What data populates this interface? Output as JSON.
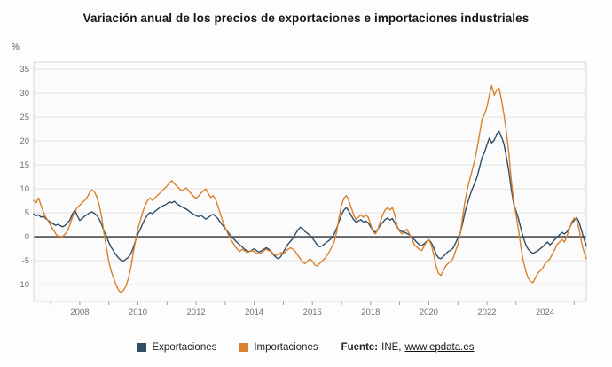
{
  "title": "Variación anual de los precios de exportaciones e importaciones industriales",
  "y_unit_label": "%",
  "legend": {
    "exportaciones": "Exportaciones",
    "importaciones": "Importaciones"
  },
  "source": {
    "prefix": "Fuente:",
    "org": "INE,",
    "link": "www.epdata.es"
  },
  "colors": {
    "exportaciones": "#2e4d66",
    "importaciones": "#d9812c",
    "zero_line": "#4d4d4d",
    "grid": "#e4e4e4",
    "border": "#d6d6d6",
    "plot_bg": "#fbfbfb",
    "axis_text": "#707070",
    "tick": "#999999"
  },
  "chart_data": {
    "type": "line",
    "title": "Variación anual de los precios de exportaciones e importaciones industriales",
    "xlabel": "",
    "ylabel": "%",
    "x_start": 2006.4167,
    "x_step": 0.0833333,
    "xticks": [
      2008,
      2010,
      2012,
      2014,
      2016,
      2018,
      2020,
      2022,
      2024
    ],
    "yticks": [
      -10,
      -5,
      0,
      5,
      10,
      15,
      20,
      25,
      30,
      35
    ],
    "ylim_draw": [
      -13.5,
      36.5
    ],
    "legend_position": "bottom",
    "grid": true,
    "series": [
      {
        "name": "Exportaciones",
        "color": "#2e4d66",
        "values": [
          4.8,
          4.4,
          4.6,
          4.1,
          4.3,
          3.8,
          3.4,
          3.0,
          2.7,
          2.4,
          2.6,
          2.3,
          2.1,
          2.4,
          2.9,
          3.6,
          4.8,
          5.6,
          4.4,
          3.4,
          3.8,
          4.3,
          4.6,
          5.0,
          5.2,
          4.9,
          4.5,
          3.7,
          2.6,
          1.2,
          0.2,
          -1.2,
          -2.2,
          -3.0,
          -3.8,
          -4.4,
          -4.9,
          -5.1,
          -4.7,
          -4.3,
          -3.6,
          -2.4,
          -0.8,
          0.6,
          1.6,
          2.8,
          3.8,
          4.6,
          5.1,
          4.8,
          5.3,
          5.7,
          6.1,
          6.4,
          6.6,
          6.9,
          7.3,
          7.1,
          7.4,
          6.9,
          6.6,
          6.3,
          6.0,
          5.8,
          5.4,
          5.0,
          4.7,
          4.4,
          4.2,
          4.5,
          4.1,
          3.7,
          4.0,
          4.4,
          4.7,
          4.3,
          3.8,
          3.0,
          2.4,
          1.7,
          1.1,
          0.4,
          -0.2,
          -0.7,
          -1.2,
          -1.7,
          -2.1,
          -2.6,
          -2.9,
          -3.1,
          -2.8,
          -2.5,
          -2.9,
          -3.2,
          -2.9,
          -2.6,
          -2.3,
          -2.6,
          -3.1,
          -3.8,
          -4.3,
          -4.6,
          -4.1,
          -3.2,
          -2.3,
          -1.5,
          -0.9,
          -0.3,
          0.6,
          1.4,
          2.0,
          1.7,
          1.1,
          0.7,
          0.3,
          -0.3,
          -1.0,
          -1.7,
          -2.1,
          -1.9,
          -1.5,
          -1.1,
          -0.7,
          -0.2,
          0.6,
          1.8,
          3.2,
          4.6,
          5.6,
          6.1,
          5.4,
          4.4,
          3.6,
          3.1,
          3.3,
          3.6,
          3.1,
          3.3,
          2.9,
          2.1,
          1.3,
          0.9,
          1.6,
          2.4,
          3.0,
          3.6,
          3.9,
          3.5,
          3.8,
          2.9,
          1.9,
          1.4,
          1.1,
          0.9,
          0.7,
          0.4,
          -0.1,
          -0.6,
          -1.1,
          -1.6,
          -1.9,
          -1.5,
          -1.0,
          -0.6,
          -1.2,
          -2.2,
          -3.6,
          -4.4,
          -4.6,
          -4.1,
          -3.6,
          -3.1,
          -2.8,
          -2.4,
          -1.4,
          -0.3,
          0.8,
          2.8,
          5.2,
          7.0,
          8.6,
          10.1,
          11.2,
          12.6,
          14.6,
          16.6,
          17.6,
          19.2,
          20.6,
          19.6,
          20.2,
          21.4,
          22.0,
          20.9,
          19.4,
          16.8,
          13.8,
          10.0,
          7.0,
          5.4,
          3.8,
          1.8,
          -0.2,
          -1.6,
          -2.6,
          -3.1,
          -3.5,
          -3.2,
          -2.9,
          -2.5,
          -2.1,
          -1.6,
          -1.1,
          -1.7,
          -1.2,
          -0.6,
          -0.1,
          0.4,
          0.9,
          0.6,
          1.0,
          1.8,
          2.8,
          3.4,
          4.0,
          3.1,
          1.4,
          -0.4,
          -1.9
        ]
      },
      {
        "name": "Importaciones",
        "color": "#d9812c",
        "values": [
          7.6,
          7.1,
          8.1,
          6.6,
          5.2,
          4.1,
          3.3,
          2.4,
          1.5,
          0.7,
          0.1,
          -0.3,
          0.1,
          0.6,
          1.3,
          2.6,
          4.1,
          5.4,
          6.1,
          6.6,
          7.1,
          7.6,
          8.2,
          9.1,
          9.8,
          9.4,
          8.4,
          6.8,
          4.2,
          0.8,
          -2.2,
          -5.2,
          -7.2,
          -8.7,
          -10.1,
          -11.1,
          -11.7,
          -11.2,
          -10.4,
          -8.8,
          -6.6,
          -3.6,
          -0.8,
          1.8,
          3.4,
          5.2,
          6.6,
          7.6,
          8.1,
          7.6,
          8.1,
          8.6,
          9.1,
          9.6,
          10.1,
          10.6,
          11.3,
          11.7,
          11.1,
          10.6,
          10.1,
          9.6,
          9.9,
          10.2,
          9.5,
          9.0,
          8.4,
          8.0,
          8.5,
          9.1,
          9.6,
          10.0,
          9.1,
          8.2,
          8.6,
          7.9,
          6.4,
          4.8,
          3.3,
          1.9,
          0.8,
          -0.2,
          -1.1,
          -1.9,
          -2.6,
          -3.1,
          -2.6,
          -2.9,
          -3.3,
          -3.1,
          -2.9,
          -3.1,
          -3.4,
          -3.6,
          -3.3,
          -2.9,
          -2.6,
          -2.9,
          -3.1,
          -3.6,
          -3.9,
          -3.6,
          -3.3,
          -3.6,
          -3.1,
          -2.6,
          -2.3,
          -2.6,
          -3.1,
          -3.9,
          -4.6,
          -5.3,
          -5.6,
          -5.1,
          -4.6,
          -5.1,
          -5.9,
          -6.1,
          -5.6,
          -5.1,
          -4.6,
          -3.9,
          -3.1,
          -2.1,
          -1.1,
          1.1,
          4.1,
          6.6,
          8.1,
          8.6,
          7.6,
          6.1,
          4.6,
          3.6,
          4.1,
          4.6,
          4.1,
          4.6,
          4.1,
          2.6,
          1.1,
          0.6,
          1.6,
          3.1,
          4.6,
          5.6,
          6.1,
          5.6,
          6.1,
          4.6,
          2.1,
          1.1,
          0.6,
          1.1,
          1.6,
          0.6,
          -0.4,
          -1.6,
          -2.1,
          -2.6,
          -2.9,
          -2.1,
          -1.1,
          -0.6,
          -1.6,
          -3.6,
          -6.1,
          -7.6,
          -8.1,
          -7.1,
          -6.1,
          -5.6,
          -5.1,
          -4.6,
          -3.1,
          -1.6,
          0.6,
          4.1,
          7.6,
          10.1,
          12.1,
          14.1,
          16.1,
          18.6,
          21.6,
          24.6,
          25.6,
          27.1,
          29.6,
          31.6,
          29.6,
          30.6,
          31.1,
          28.6,
          25.6,
          22.1,
          17.6,
          12.1,
          7.6,
          4.6,
          1.6,
          -2.1,
          -5.1,
          -7.1,
          -8.6,
          -9.3,
          -9.6,
          -8.6,
          -7.6,
          -7.1,
          -6.6,
          -5.6,
          -5.1,
          -4.6,
          -3.6,
          -2.6,
          -1.6,
          -1.1,
          -0.6,
          -1.1,
          0.1,
          1.6,
          3.1,
          3.9,
          3.6,
          1.6,
          -1.1,
          -3.1,
          -4.6
        ]
      }
    ]
  }
}
